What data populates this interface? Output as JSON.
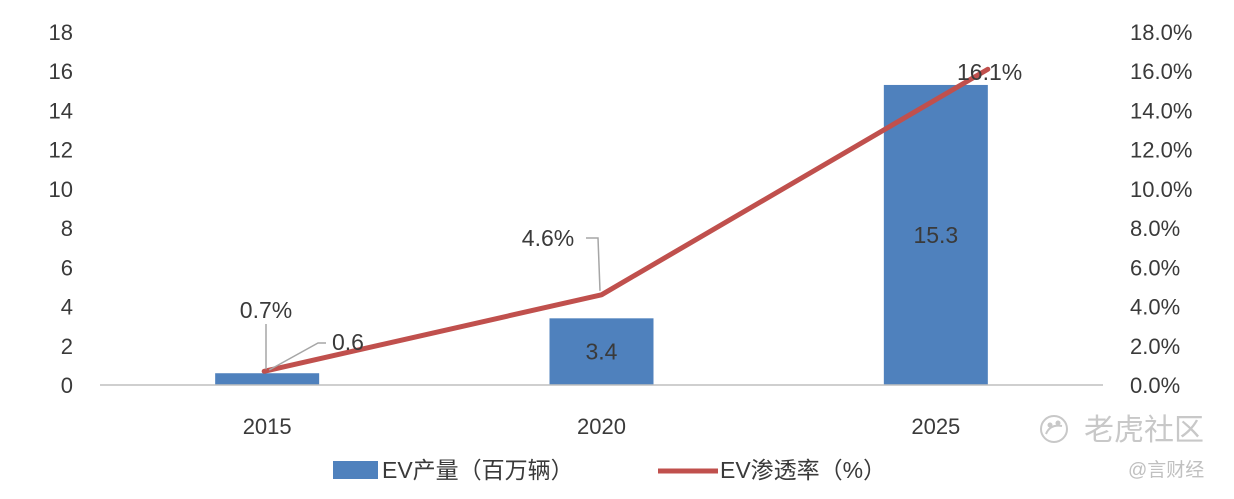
{
  "chart_data": {
    "type": "bar+line",
    "categories": [
      "2015",
      "2020",
      "2025"
    ],
    "series": [
      {
        "name": "EV产量（百万辆）",
        "type": "bar",
        "axis": "left",
        "values": [
          0.6,
          3.4,
          15.3
        ],
        "data_labels": [
          "0.6",
          "3.4",
          "15.3"
        ],
        "color": "#4f81bd"
      },
      {
        "name": "EV渗透率（%）",
        "type": "line",
        "axis": "right",
        "values": [
          0.7,
          4.6,
          16.1
        ],
        "data_labels": [
          "0.7%",
          "4.6%",
          "16.1%"
        ],
        "color": "#c0504d"
      }
    ],
    "y_left": {
      "min": 0,
      "max": 18,
      "step": 2,
      "ticks": [
        "0",
        "2",
        "4",
        "6",
        "8",
        "10",
        "12",
        "14",
        "16",
        "18"
      ]
    },
    "y_right": {
      "min": 0,
      "max": 18,
      "step": 2,
      "ticks": [
        "0.0%",
        "2.0%",
        "4.0%",
        "6.0%",
        "8.0%",
        "10.0%",
        "12.0%",
        "14.0%",
        "16.0%",
        "18.0%"
      ]
    },
    "grid": false,
    "legend_position": "bottom"
  },
  "watermark": {
    "main": "老虎社区",
    "sub": "@言财经",
    "icon": "tiger-paw-icon"
  },
  "colors": {
    "axis": "#bfbfbf",
    "leader": "#a6a6a6",
    "text": "#3a3a3a"
  }
}
